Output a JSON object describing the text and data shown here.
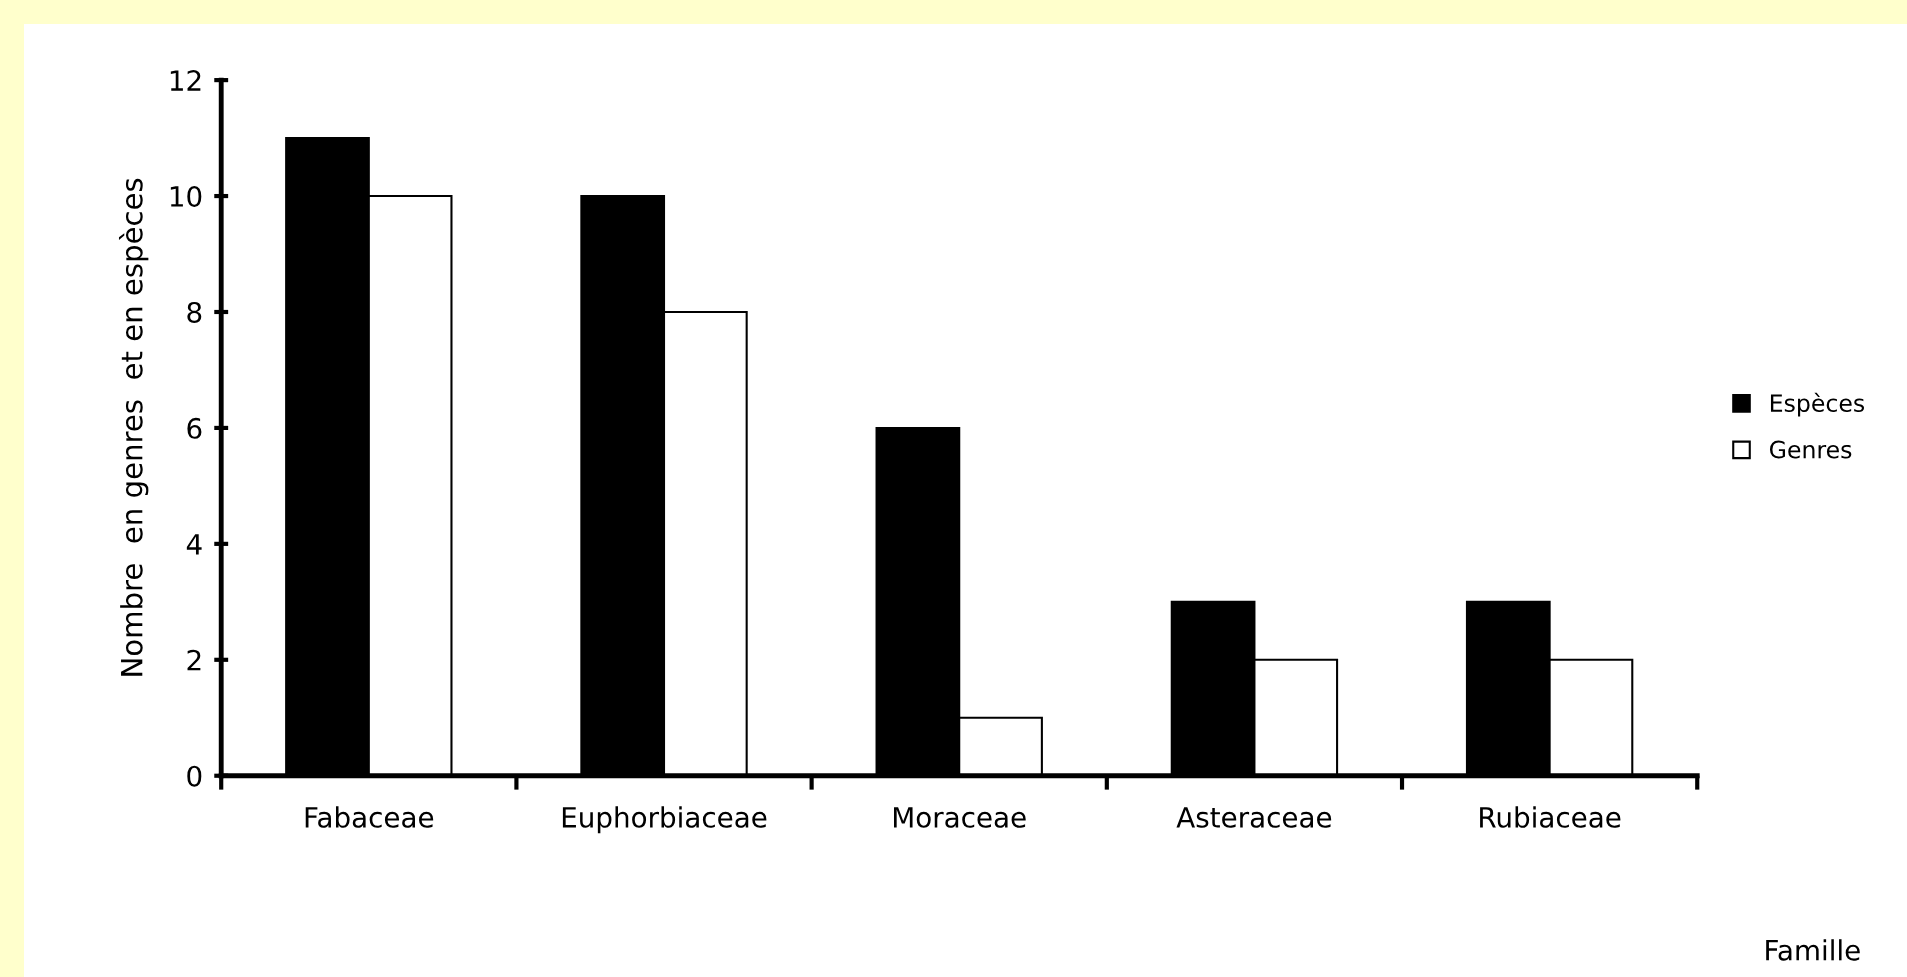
{
  "chart_data": {
    "type": "bar",
    "xlabel": "Famille",
    "ylabel": "Nombre  en genres  et en espèces",
    "categories": [
      "Fabaceae",
      "Euphorbiaceae",
      "Moraceae",
      "Asteraceae",
      "Rubiaceae"
    ],
    "series": [
      {
        "name": "Espèces",
        "color": "#000000",
        "values": [
          11,
          10,
          6,
          3,
          3
        ]
      },
      {
        "name": "Genres",
        "color": "#ffffff",
        "values": [
          10,
          8,
          1,
          2,
          2
        ]
      }
    ],
    "ylim": [
      0,
      12
    ],
    "yticks": [
      0,
      2,
      4,
      6,
      8,
      10,
      12
    ],
    "grid": false,
    "legend": "right"
  }
}
